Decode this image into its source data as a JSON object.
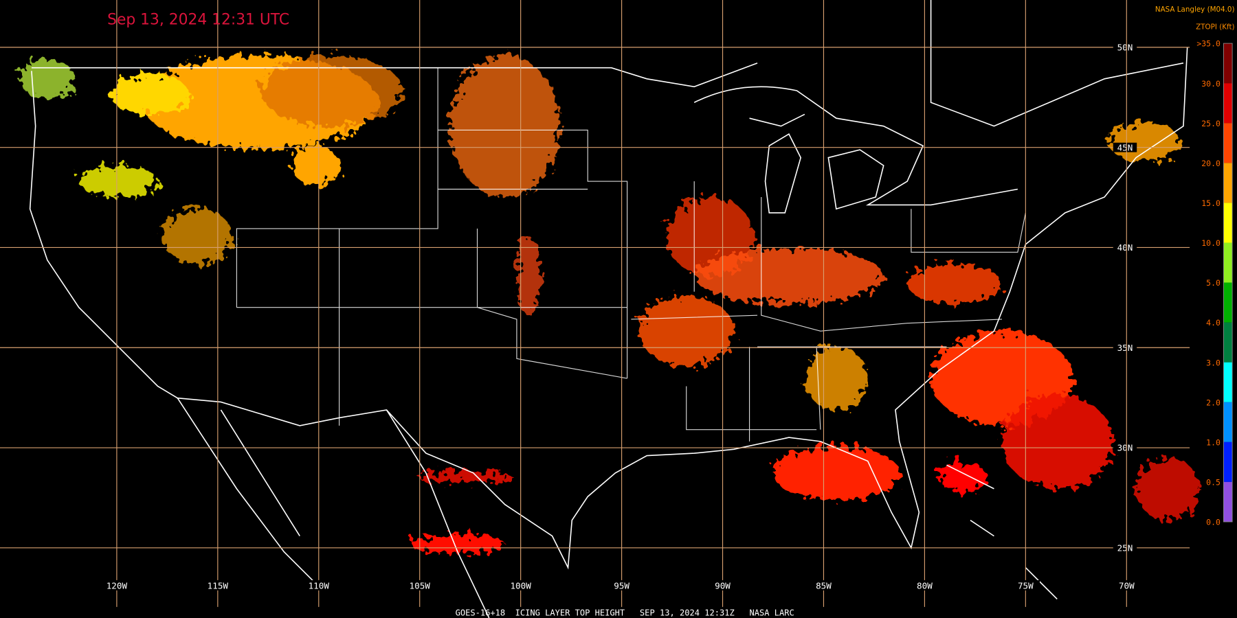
{
  "header": {
    "title": "Sep 13, 2024 12:31 UTC",
    "source": "NASA Langley (M04.0)",
    "product_label": "ZTOPI (Kft)"
  },
  "colorbar": {
    "labels": [
      ">35.0",
      "30.0",
      "25.0",
      "20.0",
      "15.0",
      "10.0",
      "5.0",
      "4.0",
      "3.0",
      "2.0",
      "1.0",
      "0.5",
      "0.0"
    ]
  },
  "grid": {
    "latitude_labels": [
      "50N",
      "45N",
      "40N",
      "35N",
      "30N",
      "25N"
    ],
    "longitude_labels": [
      "120W",
      "115W",
      "110W",
      "105W",
      "100W",
      "95W",
      "90W",
      "85W",
      "80W",
      "75W",
      "70W"
    ]
  },
  "footer": "GOES-16+18  ICING LAYER TOP HEIGHT   SEP 13, 2024 12:31Z   NASA LARC"
}
